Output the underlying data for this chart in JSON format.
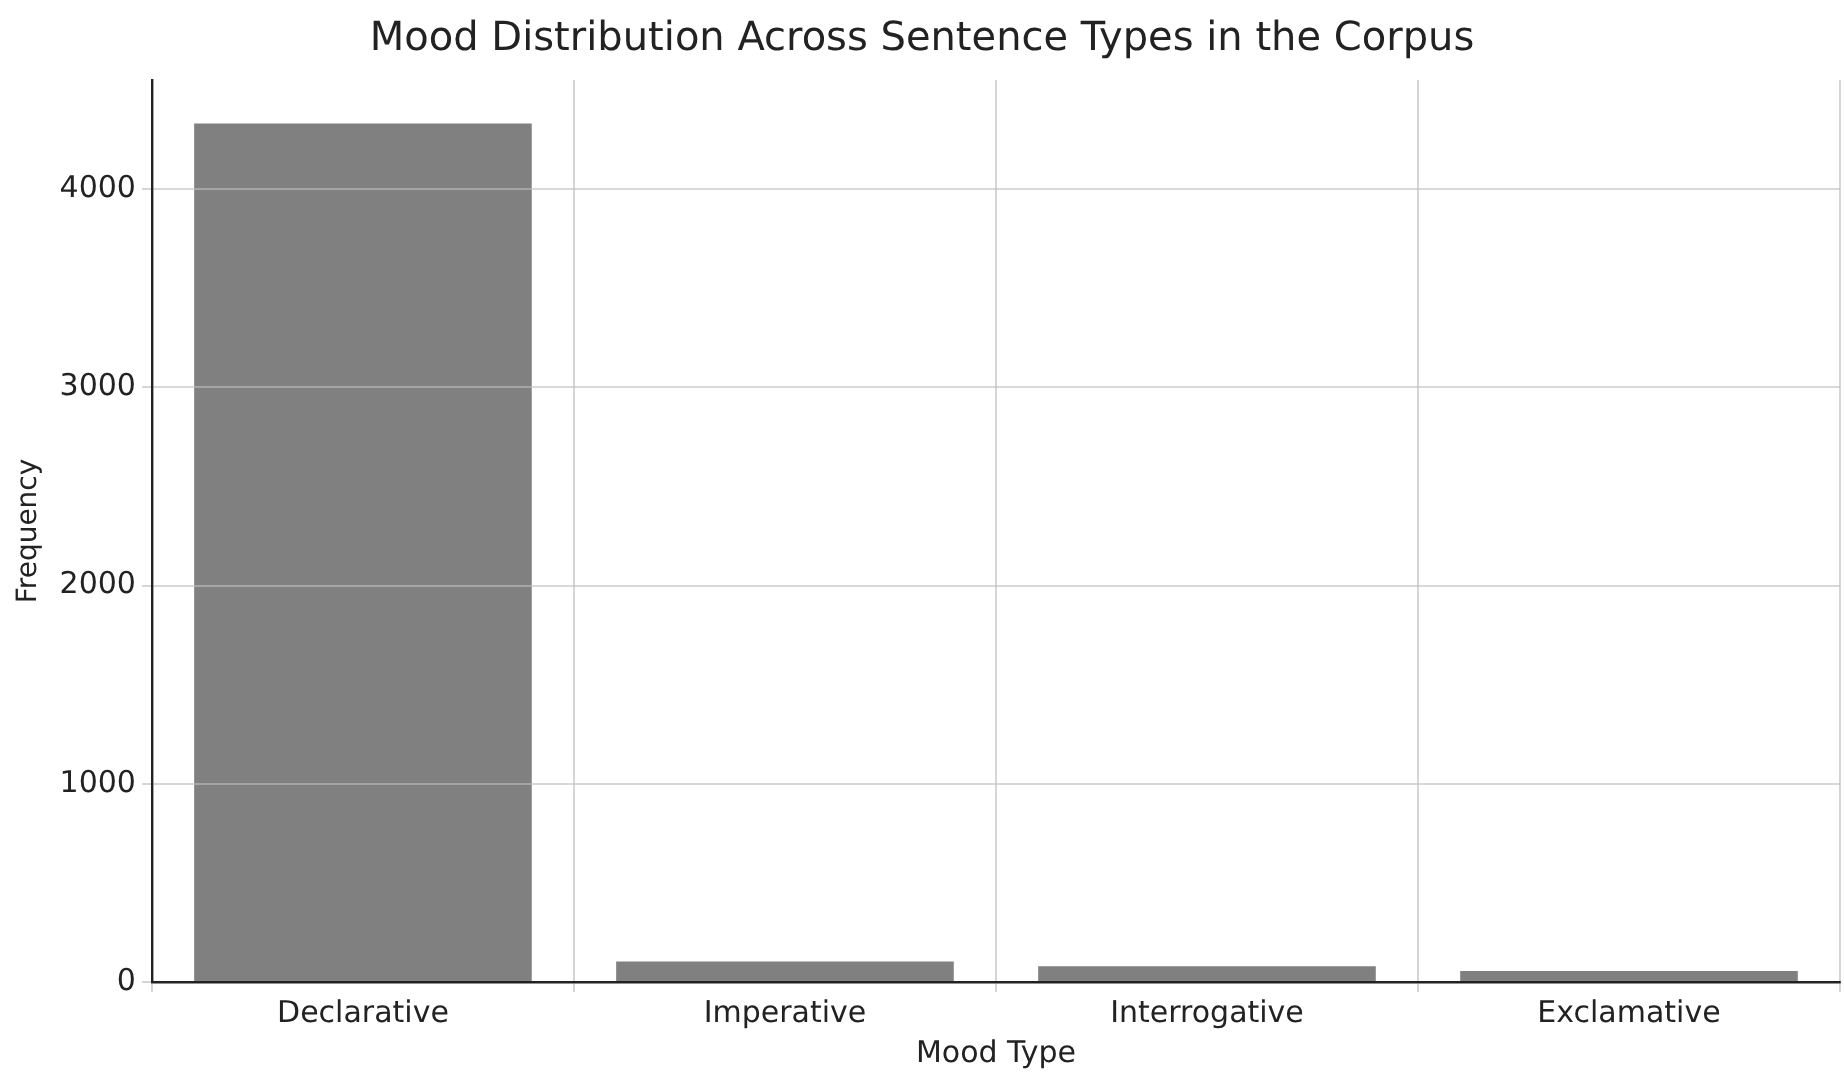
{
  "chart_data": {
    "type": "bar",
    "title": "Mood Distribution Across Sentence Types in the Corpus",
    "xlabel": "Mood Type",
    "ylabel": "Frequency",
    "categories": [
      "Declarative",
      "Imperative",
      "Interrogative",
      "Exclamative"
    ],
    "values": [
      4330,
      104,
      80,
      56
    ],
    "color": "#808080",
    "ylim": [
      0,
      4550
    ],
    "yticks": [
      0,
      1000,
      2000,
      3000,
      4000
    ],
    "grid": true
  }
}
